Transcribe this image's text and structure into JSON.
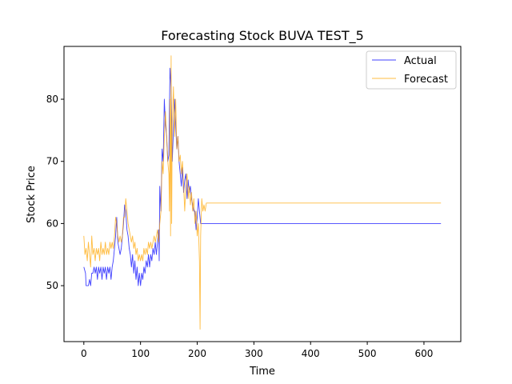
{
  "chart_data": {
    "type": "line",
    "title": "Forecasting Stock BUVA TEST_5",
    "xlabel": "Time",
    "ylabel": "Stock Price",
    "xlim": [
      -35,
      665
    ],
    "ylim": [
      41,
      88.5
    ],
    "xticks": [
      0,
      100,
      200,
      300,
      400,
      500,
      600
    ],
    "yticks": [
      50,
      60,
      70,
      80
    ],
    "grid": false,
    "legend_position": "upper-right",
    "series": [
      {
        "name": "Actual",
        "color": "#0000ff",
        "points": [
          [
            0,
            53
          ],
          [
            3,
            52
          ],
          [
            4,
            50
          ],
          [
            8,
            50
          ],
          [
            10,
            51
          ],
          [
            12,
            50
          ],
          [
            14,
            52
          ],
          [
            16,
            52
          ],
          [
            18,
            53
          ],
          [
            20,
            52
          ],
          [
            22,
            53
          ],
          [
            24,
            51
          ],
          [
            26,
            53
          ],
          [
            28,
            52
          ],
          [
            30,
            53
          ],
          [
            32,
            51
          ],
          [
            34,
            53
          ],
          [
            36,
            52
          ],
          [
            38,
            53
          ],
          [
            40,
            51
          ],
          [
            42,
            53
          ],
          [
            44,
            52
          ],
          [
            46,
            53
          ],
          [
            48,
            51
          ],
          [
            50,
            53
          ],
          [
            52,
            54
          ],
          [
            54,
            56
          ],
          [
            56,
            58
          ],
          [
            58,
            61
          ],
          [
            60,
            57
          ],
          [
            62,
            56
          ],
          [
            64,
            55
          ],
          [
            66,
            56
          ],
          [
            68,
            58
          ],
          [
            70,
            60
          ],
          [
            72,
            63
          ],
          [
            74,
            62
          ],
          [
            76,
            59
          ],
          [
            78,
            58
          ],
          [
            80,
            56
          ],
          [
            82,
            55
          ],
          [
            84,
            53
          ],
          [
            86,
            55
          ],
          [
            88,
            52
          ],
          [
            90,
            54
          ],
          [
            92,
            51
          ],
          [
            94,
            53
          ],
          [
            96,
            50
          ],
          [
            98,
            52
          ],
          [
            100,
            50
          ],
          [
            102,
            52
          ],
          [
            104,
            51
          ],
          [
            106,
            53
          ],
          [
            108,
            52
          ],
          [
            110,
            54
          ],
          [
            112,
            53
          ],
          [
            114,
            55
          ],
          [
            116,
            53
          ],
          [
            118,
            55
          ],
          [
            120,
            54
          ],
          [
            122,
            56
          ],
          [
            124,
            55
          ],
          [
            126,
            57
          ],
          [
            128,
            55
          ],
          [
            130,
            57
          ],
          [
            132,
            59
          ],
          [
            133,
            54
          ],
          [
            134,
            66
          ],
          [
            136,
            62
          ],
          [
            138,
            72
          ],
          [
            140,
            70
          ],
          [
            142,
            80
          ],
          [
            144,
            76
          ],
          [
            146,
            74
          ],
          [
            148,
            70
          ],
          [
            150,
            71
          ],
          [
            152,
            85
          ],
          [
            154,
            82
          ],
          [
            156,
            70
          ],
          [
            158,
            75
          ],
          [
            160,
            80
          ],
          [
            162,
            76
          ],
          [
            164,
            72
          ],
          [
            166,
            74
          ],
          [
            168,
            70
          ],
          [
            170,
            68
          ],
          [
            172,
            66
          ],
          [
            174,
            69
          ],
          [
            176,
            65
          ],
          [
            178,
            67
          ],
          [
            180,
            68
          ],
          [
            182,
            64
          ],
          [
            184,
            67
          ],
          [
            186,
            65
          ],
          [
            188,
            66
          ],
          [
            190,
            64
          ],
          [
            192,
            63
          ],
          [
            194,
            62
          ],
          [
            196,
            62
          ],
          [
            198,
            59
          ],
          [
            200,
            61
          ],
          [
            202,
            64
          ],
          [
            204,
            62
          ],
          [
            206,
            60
          ],
          [
            208,
            60
          ],
          [
            630,
            60
          ]
        ]
      },
      {
        "name": "Forecast",
        "color": "#ffa500",
        "points": [
          [
            0,
            58
          ],
          [
            2,
            55
          ],
          [
            4,
            56
          ],
          [
            6,
            54
          ],
          [
            8,
            57
          ],
          [
            10,
            55
          ],
          [
            12,
            53
          ],
          [
            14,
            58
          ],
          [
            16,
            55
          ],
          [
            18,
            56
          ],
          [
            20,
            54
          ],
          [
            22,
            56
          ],
          [
            24,
            55
          ],
          [
            26,
            56
          ],
          [
            28,
            54
          ],
          [
            30,
            57
          ],
          [
            32,
            55
          ],
          [
            34,
            56
          ],
          [
            36,
            55
          ],
          [
            38,
            57
          ],
          [
            40,
            55
          ],
          [
            42,
            56
          ],
          [
            44,
            55
          ],
          [
            46,
            57
          ],
          [
            48,
            56
          ],
          [
            50,
            57
          ],
          [
            52,
            56
          ],
          [
            54,
            58
          ],
          [
            56,
            61
          ],
          [
            58,
            60
          ],
          [
            60,
            58
          ],
          [
            62,
            57
          ],
          [
            64,
            58
          ],
          [
            66,
            57
          ],
          [
            68,
            58
          ],
          [
            70,
            61
          ],
          [
            72,
            61
          ],
          [
            74,
            64
          ],
          [
            76,
            62
          ],
          [
            78,
            60
          ],
          [
            80,
            59
          ],
          [
            82,
            58
          ],
          [
            84,
            57
          ],
          [
            86,
            58
          ],
          [
            88,
            56
          ],
          [
            90,
            57
          ],
          [
            92,
            55
          ],
          [
            94,
            56
          ],
          [
            96,
            54
          ],
          [
            98,
            55
          ],
          [
            100,
            54
          ],
          [
            102,
            55
          ],
          [
            104,
            54
          ],
          [
            106,
            56
          ],
          [
            108,
            55
          ],
          [
            110,
            56
          ],
          [
            112,
            55
          ],
          [
            114,
            57
          ],
          [
            116,
            56
          ],
          [
            118,
            57
          ],
          [
            120,
            56
          ],
          [
            122,
            57
          ],
          [
            124,
            58
          ],
          [
            126,
            57
          ],
          [
            128,
            58
          ],
          [
            130,
            59
          ],
          [
            132,
            57
          ],
          [
            134,
            60
          ],
          [
            136,
            62
          ],
          [
            138,
            70
          ],
          [
            140,
            68
          ],
          [
            142,
            74
          ],
          [
            144,
            78
          ],
          [
            146,
            74
          ],
          [
            148,
            70
          ],
          [
            150,
            68
          ],
          [
            151,
            62
          ],
          [
            152,
            80
          ],
          [
            153,
            58
          ],
          [
            154,
            87
          ],
          [
            155,
            60
          ],
          [
            156,
            76
          ],
          [
            158,
            82
          ],
          [
            160,
            74
          ],
          [
            162,
            80
          ],
          [
            164,
            72
          ],
          [
            166,
            74
          ],
          [
            168,
            70
          ],
          [
            170,
            71
          ],
          [
            172,
            68
          ],
          [
            174,
            70
          ],
          [
            176,
            66
          ],
          [
            178,
            62
          ],
          [
            180,
            66
          ],
          [
            182,
            68
          ],
          [
            184,
            64
          ],
          [
            186,
            66
          ],
          [
            188,
            63
          ],
          [
            190,
            65
          ],
          [
            192,
            62
          ],
          [
            194,
            64
          ],
          [
            196,
            60
          ],
          [
            198,
            62
          ],
          [
            200,
            58
          ],
          [
            202,
            60
          ],
          [
            204,
            54
          ],
          [
            205,
            43
          ],
          [
            206,
            58
          ],
          [
            208,
            64
          ],
          [
            210,
            62
          ],
          [
            212,
            63
          ],
          [
            214,
            62
          ],
          [
            216,
            63.3
          ],
          [
            630,
            63.3
          ]
        ]
      }
    ]
  }
}
